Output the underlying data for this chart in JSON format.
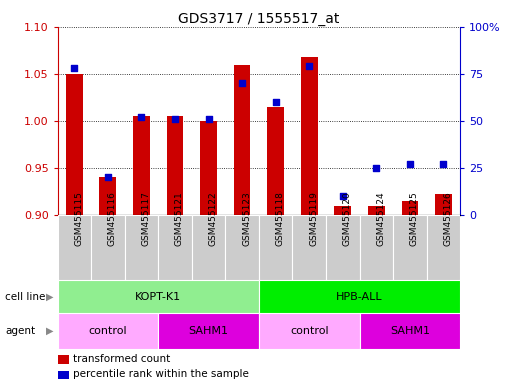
{
  "title": "GDS3717 / 1555517_at",
  "samples": [
    "GSM455115",
    "GSM455116",
    "GSM455117",
    "GSM455121",
    "GSM455122",
    "GSM455123",
    "GSM455118",
    "GSM455119",
    "GSM455120",
    "GSM455124",
    "GSM455125",
    "GSM455126"
  ],
  "red_values": [
    1.05,
    0.94,
    1.005,
    1.005,
    1.0,
    1.06,
    1.015,
    1.068,
    0.91,
    0.91,
    0.915,
    0.922
  ],
  "blue_values": [
    78,
    20,
    52,
    51,
    51,
    70,
    60,
    79,
    10,
    25,
    27,
    27
  ],
  "ylim_left": [
    0.9,
    1.1
  ],
  "ylim_right": [
    0,
    100
  ],
  "yticks_left": [
    0.9,
    0.95,
    1.0,
    1.05,
    1.1
  ],
  "yticks_right": [
    0,
    25,
    50,
    75,
    100
  ],
  "cell_line_groups": [
    {
      "label": "KOPT-K1",
      "start": 0,
      "end": 5,
      "color": "#90EE90"
    },
    {
      "label": "HPB-ALL",
      "start": 6,
      "end": 11,
      "color": "#00EE00"
    }
  ],
  "agent_groups": [
    {
      "label": "control",
      "start": 0,
      "end": 2,
      "color": "#FFAAFF"
    },
    {
      "label": "SAHM1",
      "start": 3,
      "end": 5,
      "color": "#DD00DD"
    },
    {
      "label": "control",
      "start": 6,
      "end": 8,
      "color": "#FFAAFF"
    },
    {
      "label": "SAHM1",
      "start": 9,
      "end": 11,
      "color": "#DD00DD"
    }
  ],
  "bar_color": "#CC0000",
  "dot_color": "#0000CC",
  "bar_width": 0.5,
  "background_color": "#ffffff",
  "tick_color_left": "#CC0000",
  "tick_color_right": "#0000CC",
  "legend_red": "transformed count",
  "legend_blue": "percentile rank within the sample",
  "cell_line_label": "cell line",
  "agent_label": "agent"
}
